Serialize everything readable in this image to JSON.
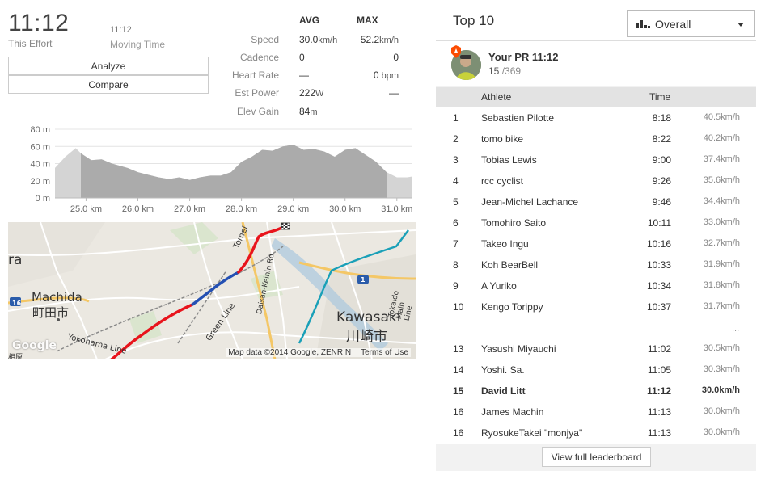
{
  "effort": {
    "time": "11:12",
    "time_label": "This Effort",
    "moving_time": "11:12",
    "moving_time_label": "Moving Time",
    "analyze_label": "Analyze",
    "compare_label": "Compare"
  },
  "stats": {
    "avg_header": "AVG",
    "max_header": "MAX",
    "rows": [
      {
        "label": "Speed",
        "avg": "30.0",
        "avg_unit": "km/h",
        "max": "52.2",
        "max_unit": "km/h"
      },
      {
        "label": "Cadence",
        "avg": "0",
        "avg_unit": "",
        "max": "0",
        "max_unit": ""
      },
      {
        "label": "Heart Rate",
        "avg": "—",
        "avg_unit": "",
        "max": "0",
        "max_unit": " bpm"
      },
      {
        "label": "Est Power",
        "avg": "222",
        "avg_unit": "W",
        "max": "—",
        "max_unit": ""
      },
      {
        "label": "Elev Gain",
        "avg": "84",
        "avg_unit": "m",
        "max": "",
        "max_unit": ""
      }
    ]
  },
  "chart_data": {
    "type": "area",
    "title": "",
    "xlabel": "",
    "ylabel": "",
    "x_unit": "km",
    "y_unit": "m",
    "xlim": [
      24.4,
      31.3
    ],
    "ylim": [
      0,
      80
    ],
    "x_ticks": [
      "25.0 km",
      "26.0 km",
      "27.0 km",
      "28.0 km",
      "29.0 km",
      "30.0 km",
      "31.0 km"
    ],
    "x_tick_values": [
      25.0,
      26.0,
      27.0,
      28.0,
      29.0,
      30.0,
      31.0
    ],
    "y_ticks": [
      "0 m",
      "20 m",
      "40 m",
      "60 m",
      "80 m"
    ],
    "y_tick_values": [
      0,
      20,
      40,
      60,
      80
    ],
    "highlight_range": [
      24.9,
      30.8
    ],
    "x": [
      24.4,
      24.6,
      24.8,
      24.9,
      25.1,
      25.3,
      25.5,
      25.8,
      26.0,
      26.2,
      26.4,
      26.6,
      26.8,
      27.0,
      27.2,
      27.4,
      27.6,
      27.8,
      28.0,
      28.2,
      28.4,
      28.6,
      28.8,
      29.0,
      29.2,
      29.4,
      29.6,
      29.8,
      30.0,
      30.2,
      30.4,
      30.6,
      30.8,
      31.0,
      31.2,
      31.3
    ],
    "y": [
      35,
      48,
      58,
      52,
      44,
      45,
      40,
      35,
      30,
      27,
      24,
      22,
      24,
      21,
      24,
      26,
      26,
      30,
      42,
      48,
      56,
      55,
      60,
      62,
      56,
      57,
      54,
      48,
      56,
      58,
      50,
      42,
      30,
      24,
      24,
      25
    ]
  },
  "map": {
    "attribution": "Map data ©2014 Google, ZENRIN",
    "terms": "Terms of Use",
    "labels": {
      "machida": "Machida",
      "machida_jp": "町田市",
      "kawasaki": "Kawasaki",
      "kawasaki_jp": "川崎市",
      "yokohama_line": "Yokohama Line",
      "green_line": "Green Line",
      "daisan_keihin": "Daisan-Keihin Rd",
      "tokaido_main": "Tokaido Main Line",
      "tomei": "Tomei",
      "route16": "16",
      "route1": "1",
      "google": "Google",
      "edge_ra": "ra",
      "edge_jp": "相原"
    }
  },
  "leaderboard": {
    "title": "Top 10",
    "filter": "Overall",
    "pr_title": "Your PR 11:12",
    "pr_rank": "15",
    "pr_total": " /369",
    "col_athlete": "Athlete",
    "col_time": "Time",
    "ellipsis": "...",
    "view_full_label": "View full leaderboard",
    "rows": [
      {
        "rank": "1",
        "name": "Sebastien Pilotte",
        "time": "8:18",
        "speed": "40.5",
        "unit": "km/h"
      },
      {
        "rank": "2",
        "name": "tomo bike",
        "time": "8:22",
        "speed": "40.2",
        "unit": "km/h"
      },
      {
        "rank": "3",
        "name": "Tobias Lewis",
        "time": "9:00",
        "speed": "37.4",
        "unit": "km/h"
      },
      {
        "rank": "4",
        "name": "rcc cyclist",
        "time": "9:26",
        "speed": "35.6",
        "unit": "km/h"
      },
      {
        "rank": "5",
        "name": "Jean-Michel Lachance",
        "time": "9:46",
        "speed": "34.4",
        "unit": "km/h"
      },
      {
        "rank": "6",
        "name": "Tomohiro Saito",
        "time": "10:11",
        "speed": "33.0",
        "unit": "km/h"
      },
      {
        "rank": "7",
        "name": "Takeo Ingu",
        "time": "10:16",
        "speed": "32.7",
        "unit": "km/h"
      },
      {
        "rank": "8",
        "name": "Koh BearBell",
        "time": "10:33",
        "speed": "31.9",
        "unit": "km/h"
      },
      {
        "rank": "9",
        "name": "A Yuriko",
        "time": "10:34",
        "speed": "31.8",
        "unit": "km/h"
      },
      {
        "rank": "10",
        "name": "Kengo Torippy",
        "time": "10:37",
        "speed": "31.7",
        "unit": "km/h"
      }
    ],
    "nearby_rows": [
      {
        "rank": "13",
        "name": "Yasushi Miyauchi",
        "time": "11:02",
        "speed": "30.5",
        "unit": "km/h"
      },
      {
        "rank": "14",
        "name": "Yoshi. Sa.",
        "time": "11:05",
        "speed": "30.3",
        "unit": "km/h"
      },
      {
        "rank": "15",
        "name": "David Litt",
        "time": "11:12",
        "speed": "30.0",
        "unit": "km/h",
        "me": true
      },
      {
        "rank": "16",
        "name": "James Machin",
        "time": "11:13",
        "speed": "30.0",
        "unit": "km/h"
      },
      {
        "rank": "16",
        "name": "RyosukeTakei \"monjya\"",
        "time": "11:13",
        "speed": "30.0",
        "unit": "km/h"
      }
    ]
  },
  "colors": {
    "route_red": "#e8141c",
    "route_blue": "#2450b3",
    "rail_teal": "#1aa0b8",
    "elev_light": "#d4d4d4",
    "elev_dark": "#ababab",
    "badge_orange": "#fc4c02"
  }
}
